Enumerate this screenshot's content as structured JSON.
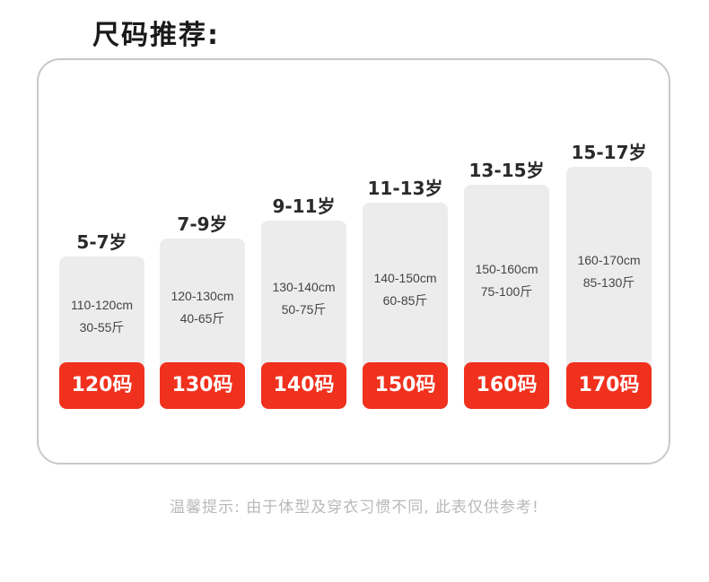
{
  "title": "尺码推荐:",
  "sizes": [
    {
      "age": "5-7岁",
      "height": "110-120cm",
      "weight": "30-55斤",
      "size": "120码"
    },
    {
      "age": "7-9岁",
      "height": "120-130cm",
      "weight": "40-65斤",
      "size": "130码"
    },
    {
      "age": "9-11岁",
      "height": "130-140cm",
      "weight": "50-75斤",
      "size": "140码"
    },
    {
      "age": "11-13岁",
      "height": "140-150cm",
      "weight": "60-85斤",
      "size": "150码"
    },
    {
      "age": "13-15岁",
      "height": "150-160cm",
      "weight": "75-100斤",
      "size": "160码"
    },
    {
      "age": "15-17岁",
      "height": "160-170cm",
      "weight": "85-130斤",
      "size": "170码"
    }
  ],
  "note": "温馨提示: 由于体型及穿衣习惯不同, 此表仅供参考!",
  "colors": {
    "accent": "#f0311d",
    "card": "#ececec",
    "border": "#c8c8c8"
  }
}
